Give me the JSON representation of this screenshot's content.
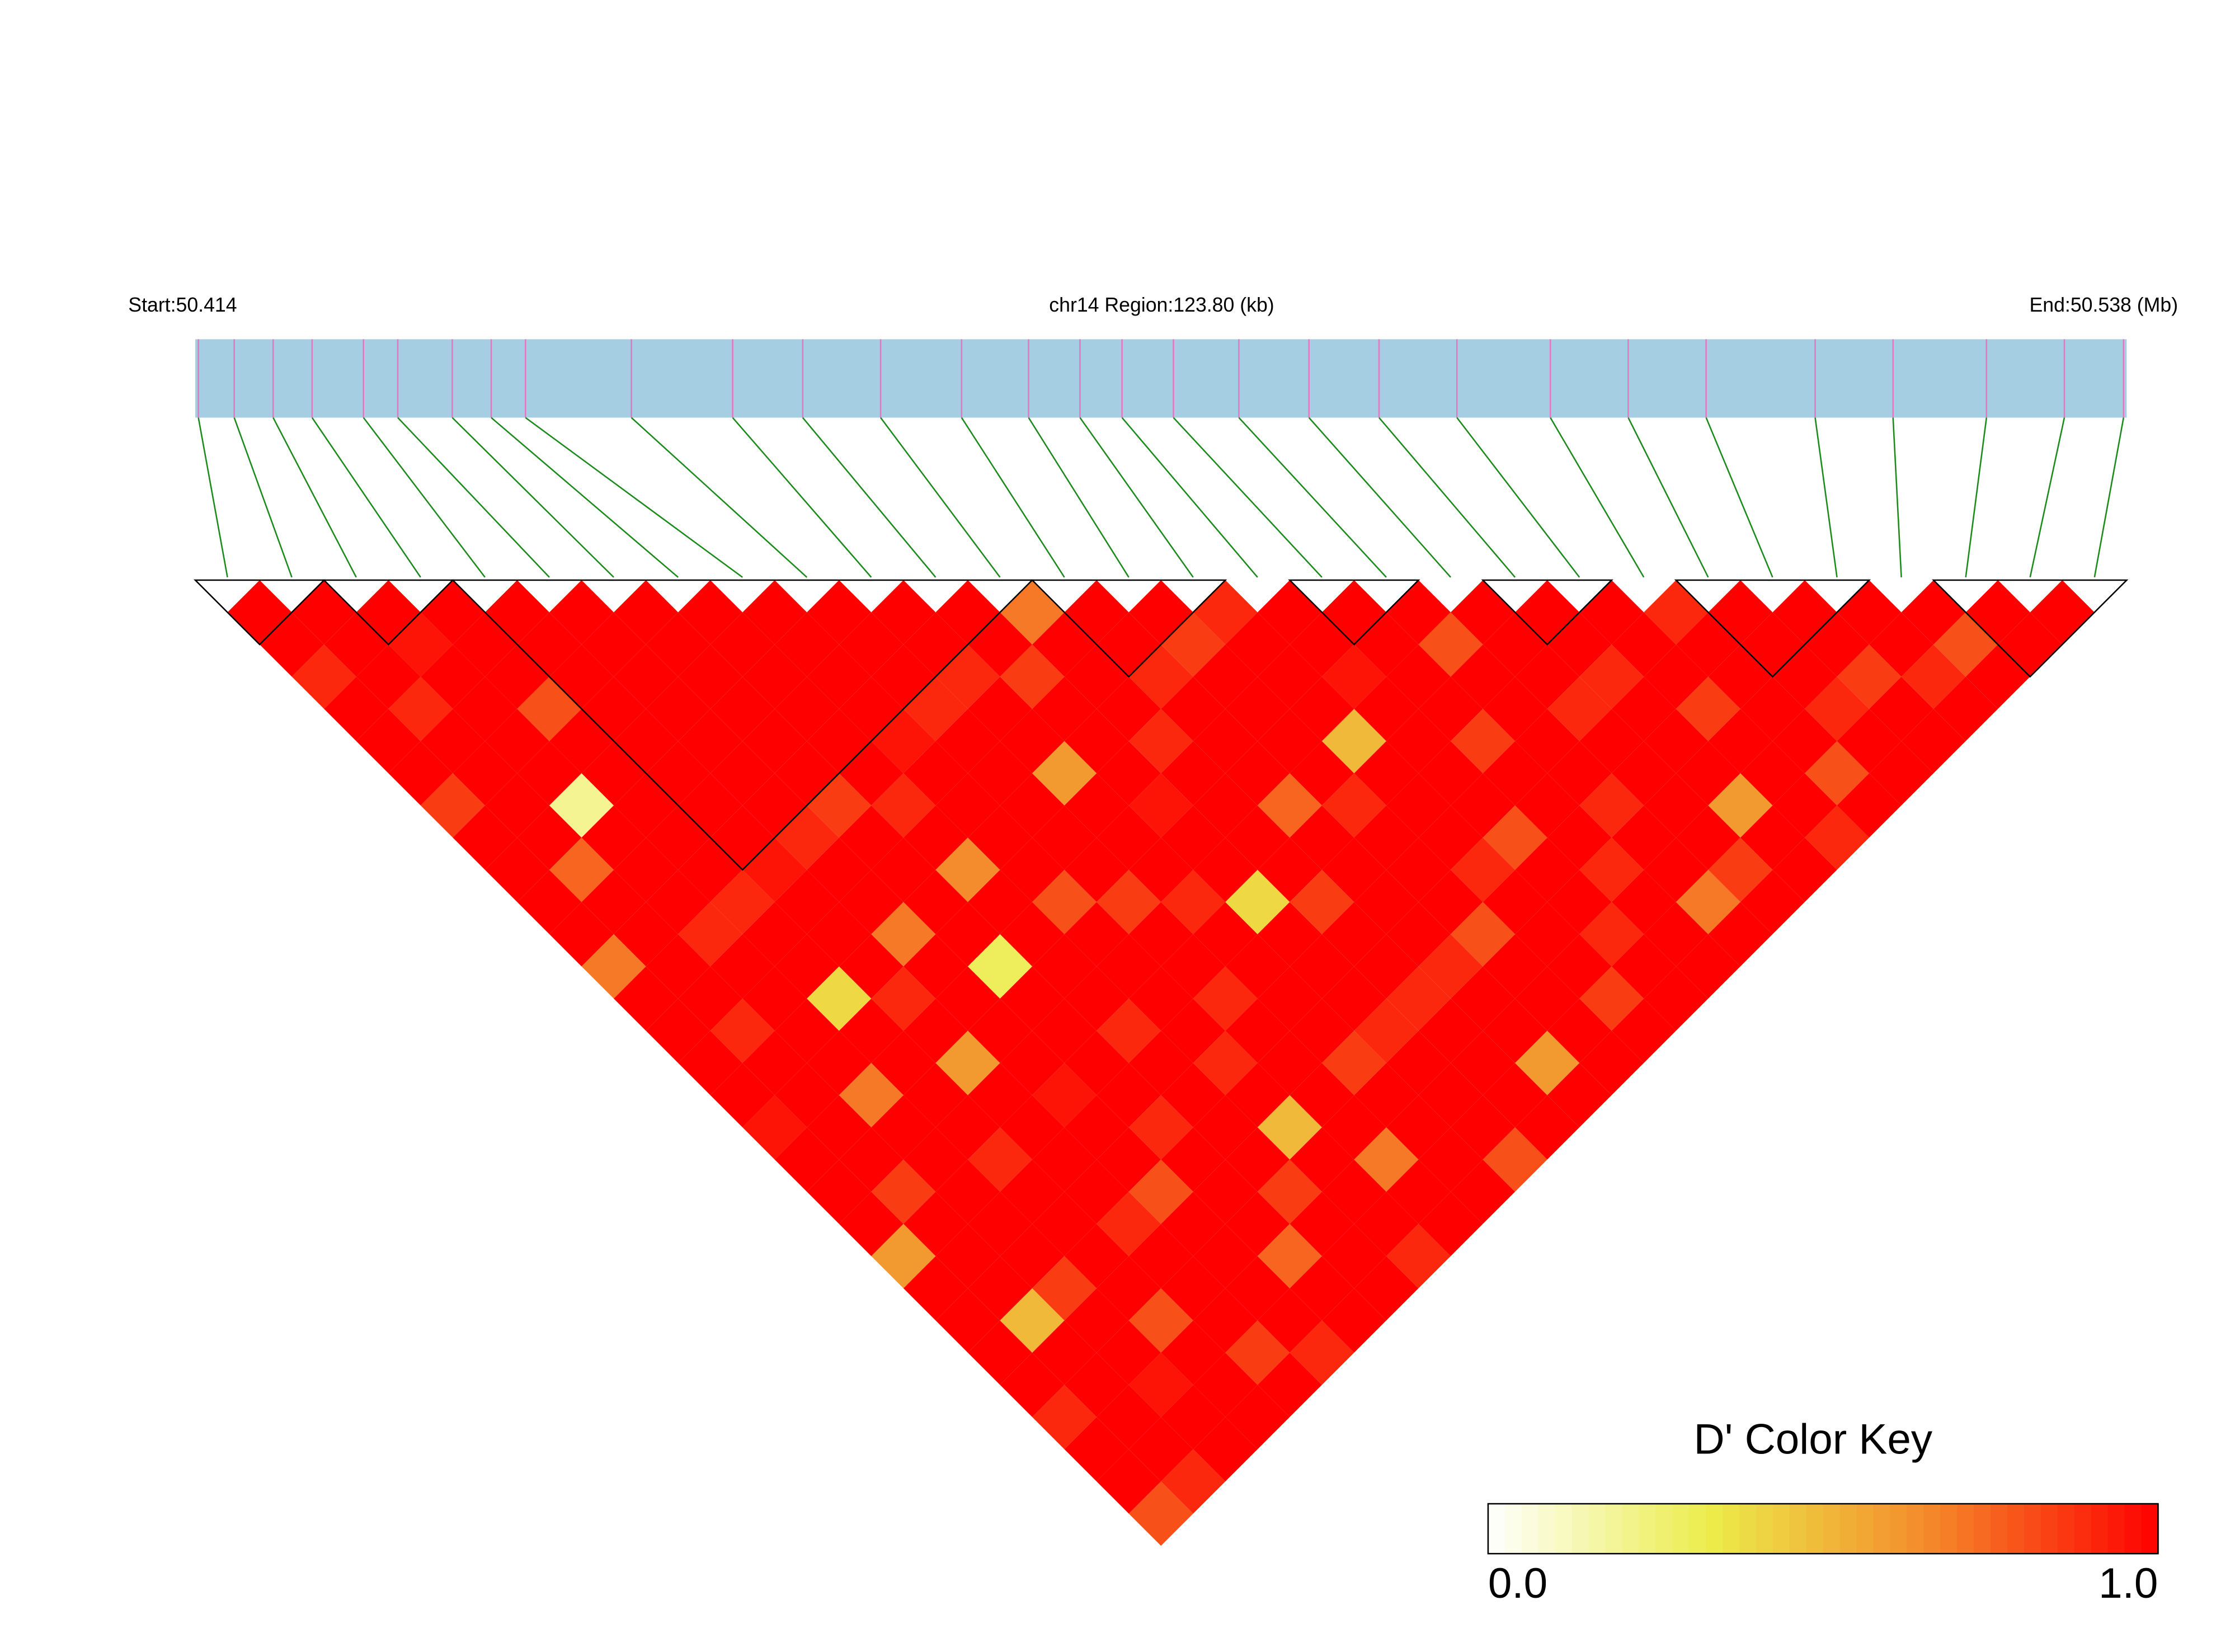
{
  "chart_data": {
    "type": "ld-heatmap",
    "start_label": "Start:50.414",
    "region_label": "chr14 Region:123.80 (kb)",
    "end_label": "End:50.538 (Mb)",
    "xlim": [
      50.414,
      50.538
    ],
    "positions": [
      50.4142,
      50.4165,
      50.419,
      50.4215,
      50.4248,
      50.427,
      50.4305,
      50.433,
      50.4352,
      50.442,
      50.4485,
      50.453,
      50.458,
      50.4632,
      50.4675,
      50.4708,
      50.4735,
      50.4768,
      50.481,
      50.4855,
      50.49,
      50.495,
      50.501,
      50.506,
      50.511,
      50.518,
      50.523,
      50.529,
      50.534,
      50.5378
    ],
    "dprime": [
      [
        1,
        1,
        0.9,
        1,
        1,
        1,
        0.85,
        1,
        1,
        1,
        1,
        0.7,
        1,
        1,
        1,
        1,
        0.95,
        1,
        1,
        1,
        0.6,
        1,
        1,
        1,
        1,
        0.9,
        1,
        1,
        0.8
      ],
      [
        1,
        1,
        1,
        0.9,
        1,
        1,
        1,
        1,
        0.75,
        1,
        1,
        1,
        1,
        0.9,
        1,
        1,
        1,
        1,
        0.85,
        1,
        1,
        1,
        0.5,
        1,
        1,
        1,
        1,
        0.9
      ],
      [
        1,
        0.95,
        1,
        1,
        1,
        1,
        0.2,
        1,
        1,
        1,
        0.9,
        1,
        1,
        1,
        1,
        0.7,
        1,
        1,
        1,
        1,
        1,
        0.85,
        1,
        1,
        0.95,
        1,
        1
      ],
      [
        1,
        1,
        1,
        0.8,
        1,
        1,
        1,
        1,
        1,
        0.9,
        1,
        1,
        0.4,
        1,
        1,
        1,
        1,
        0.9,
        1,
        1,
        1,
        1,
        0.8,
        1,
        1,
        1
      ],
      [
        1,
        1,
        1,
        1,
        1,
        1,
        1,
        1,
        0.95,
        1,
        1,
        1,
        0.9,
        1,
        0.6,
        1,
        1,
        1,
        1,
        0.9,
        1,
        1,
        1,
        0.85,
        1
      ],
      [
        1,
        1,
        1,
        1,
        1,
        1,
        1,
        0.9,
        1,
        1,
        0.7,
        1,
        1,
        1,
        1,
        0.95,
        1,
        1,
        0.8,
        1,
        1,
        1,
        1,
        0.9
      ],
      [
        1,
        1,
        1,
        1,
        1,
        1,
        0.85,
        1,
        1,
        1,
        1,
        0.3,
        1,
        1,
        1,
        1,
        0.9,
        1,
        1,
        1,
        0.75,
        1,
        1
      ],
      [
        1,
        1,
        1,
        1,
        1,
        1,
        0.9,
        1,
        0.65,
        1,
        1,
        1,
        1,
        0.9,
        1,
        1,
        1,
        1,
        0.85,
        1,
        1,
        1
      ],
      [
        1,
        1,
        1,
        1,
        0.95,
        1,
        1,
        1,
        1,
        0.8,
        1,
        1,
        1,
        1,
        0.9,
        1,
        0.5,
        1,
        1,
        1,
        0.9
      ],
      [
        1,
        1,
        1,
        0.9,
        1,
        1,
        1,
        1,
        1,
        0.85,
        1,
        1,
        0.9,
        1,
        1,
        1,
        1,
        0.7,
        1,
        1
      ],
      [
        1,
        1,
        0.9,
        1,
        1,
        0.6,
        1,
        1,
        1,
        0.9,
        1,
        1,
        1,
        1,
        0.85,
        1,
        1,
        1,
        1
      ],
      [
        1,
        1,
        0.85,
        1,
        1,
        1,
        0.95,
        1,
        1,
        0.4,
        1,
        1,
        1,
        0.9,
        1,
        1,
        1,
        0.8
      ],
      [
        0.7,
        1,
        1,
        1,
        0.9,
        1,
        1,
        1,
        1,
        0.85,
        1,
        1,
        0.9,
        1,
        1,
        1,
        1
      ],
      [
        1,
        1,
        0.9,
        1,
        1,
        1,
        0.75,
        1,
        1,
        1,
        1,
        0.9,
        1,
        1,
        0.6,
        1
      ],
      [
        1,
        0.85,
        1,
        1,
        1,
        1,
        0.9,
        1,
        1,
        1,
        0.8,
        1,
        1,
        1,
        1
      ],
      [
        0.9,
        1,
        1,
        1,
        0.5,
        1,
        1,
        1,
        0.9,
        1,
        1,
        1,
        0.85,
        1
      ],
      [
        1,
        1,
        0.95,
        1,
        1,
        1,
        1,
        0.8,
        1,
        1,
        0.9,
        1,
        1
      ],
      [
        1,
        1,
        1,
        1,
        0.85,
        1,
        1,
        1,
        0.9,
        1,
        1,
        1
      ],
      [
        1,
        0.8,
        1,
        1,
        1,
        1,
        0.9,
        1,
        1,
        0.7,
        1
      ],
      [
        1,
        1,
        1,
        0.9,
        1,
        1,
        1,
        1,
        0.85,
        1
      ],
      [
        1,
        1,
        0.9,
        1,
        1,
        1,
        0.6,
        1,
        1
      ],
      [
        1,
        1,
        1,
        0.85,
        1,
        1,
        1,
        0.9
      ],
      [
        0.9,
        1,
        1,
        1,
        1,
        0.8,
        1
      ],
      [
        1,
        1,
        1,
        0.9,
        1,
        1
      ],
      [
        1,
        1,
        0.85,
        1,
        1
      ],
      [
        1,
        1,
        0.9,
        1
      ],
      [
        1,
        0.8,
        1
      ],
      [
        1,
        1
      ],
      [
        1
      ]
    ],
    "blocks": [
      [
        0,
        1
      ],
      [
        2,
        3
      ],
      [
        4,
        12
      ],
      [
        13,
        15
      ],
      [
        17,
        18
      ],
      [
        20,
        21
      ],
      [
        23,
        25
      ],
      [
        27,
        29
      ]
    ],
    "bar_color": "#a6cee3",
    "snp_color": "#e377c2",
    "link_color": "#1a8a1a",
    "colorbar": {
      "title": "D' Color Key",
      "lim": [
        0,
        1
      ],
      "ticks": [
        {
          "value": 0,
          "label": "0.0"
        },
        {
          "value": 1,
          "label": "1.0"
        }
      ],
      "colors": [
        "#ffffff",
        "#ecec4a",
        "#f4862a",
        "#ff0000"
      ]
    }
  }
}
